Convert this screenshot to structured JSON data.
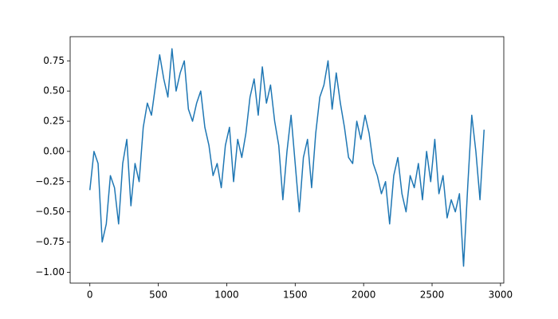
{
  "chart_data": {
    "type": "line",
    "x": [
      0,
      30,
      60,
      90,
      120,
      150,
      180,
      210,
      240,
      270,
      300,
      330,
      360,
      390,
      420,
      450,
      480,
      510,
      540,
      570,
      600,
      630,
      660,
      690,
      720,
      750,
      780,
      810,
      840,
      870,
      900,
      930,
      960,
      990,
      1020,
      1050,
      1080,
      1110,
      1140,
      1170,
      1200,
      1230,
      1260,
      1290,
      1320,
      1350,
      1380,
      1410,
      1440,
      1470,
      1500,
      1530,
      1560,
      1590,
      1620,
      1650,
      1680,
      1710,
      1740,
      1770,
      1800,
      1830,
      1860,
      1890,
      1920,
      1950,
      1980,
      2010,
      2040,
      2070,
      2100,
      2130,
      2160,
      2190,
      2220,
      2250,
      2280,
      2310,
      2340,
      2370,
      2400,
      2430,
      2460,
      2490,
      2520,
      2550,
      2580,
      2610,
      2640,
      2670,
      2700,
      2730,
      2760,
      2790,
      2820,
      2850,
      2880
    ],
    "series": [
      {
        "color": "#1f77b4",
        "values": [
          -0.32,
          0.0,
          -0.1,
          -0.75,
          -0.6,
          -0.2,
          -0.3,
          -0.6,
          -0.1,
          0.1,
          -0.45,
          -0.1,
          -0.25,
          0.2,
          0.4,
          0.3,
          0.55,
          0.8,
          0.6,
          0.45,
          0.85,
          0.5,
          0.65,
          0.75,
          0.35,
          0.25,
          0.4,
          0.5,
          0.2,
          0.05,
          -0.2,
          -0.1,
          -0.3,
          0.05,
          0.2,
          -0.25,
          0.1,
          -0.05,
          0.15,
          0.45,
          0.6,
          0.3,
          0.7,
          0.4,
          0.55,
          0.25,
          0.05,
          -0.4,
          0.0,
          0.3,
          -0.1,
          -0.5,
          -0.05,
          0.1,
          -0.3,
          0.15,
          0.45,
          0.55,
          0.75,
          0.35,
          0.65,
          0.4,
          0.2,
          -0.05,
          -0.1,
          0.25,
          0.1,
          0.3,
          0.15,
          -0.1,
          -0.2,
          -0.35,
          -0.25,
          -0.6,
          -0.2,
          -0.05,
          -0.35,
          -0.5,
          -0.2,
          -0.3,
          -0.1,
          -0.4,
          0.0,
          -0.25,
          0.1,
          -0.35,
          -0.2,
          -0.55,
          -0.4,
          -0.5,
          -0.35,
          -0.95,
          -0.3,
          0.3,
          0.0,
          -0.4,
          0.18
        ]
      }
    ],
    "xlim": [
      -144,
      3024
    ],
    "ylim": [
      -1.09,
      0.95
    ],
    "xticks": [
      0,
      500,
      1000,
      1500,
      2000,
      2500,
      3000
    ],
    "yticks": [
      {
        "value": -1.0,
        "label": "−1.00"
      },
      {
        "value": -0.75,
        "label": "−0.75"
      },
      {
        "value": -0.5,
        "label": "−0.50"
      },
      {
        "value": -0.25,
        "label": "−0.25"
      },
      {
        "value": 0.0,
        "label": "0.00"
      },
      {
        "value": 0.25,
        "label": "0.25"
      },
      {
        "value": 0.5,
        "label": "0.50"
      },
      {
        "value": 0.75,
        "label": "0.75"
      }
    ]
  }
}
